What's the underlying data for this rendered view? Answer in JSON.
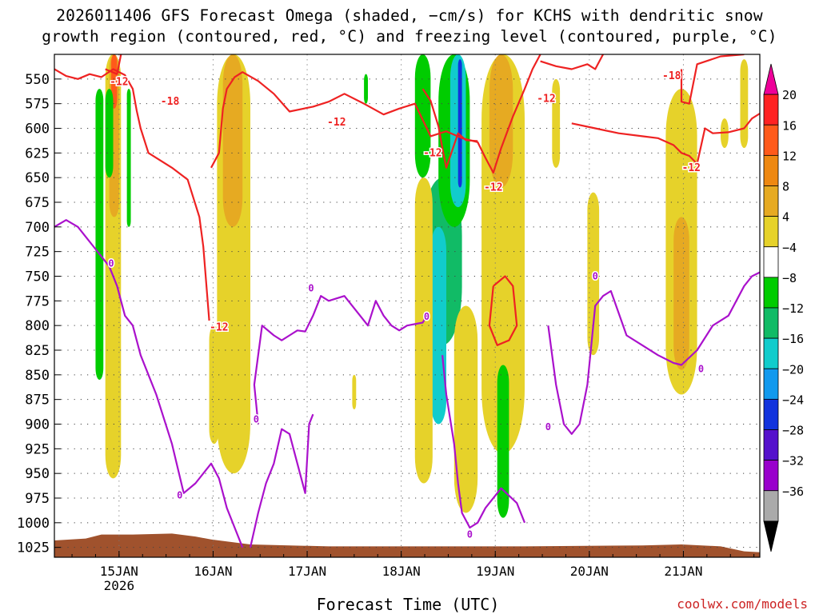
{
  "chart_data": {
    "type": "heatmap",
    "title_lines": [
      "2026011406 GFS Forecast Omega (shaded, −cm/s) for KCHS with dendritic snow",
      "growth region (contoured, red, °C) and freezing level (contoured, purple, °C)"
    ],
    "xlabel": "Forecast Time (UTC)",
    "ylabel": "",
    "credit": "coolwx.com/models",
    "x_range_hours": [
      0,
      180
    ],
    "y_range_hpa": [
      525,
      1035
    ],
    "x_ticks": [
      {
        "hour": 16.5,
        "label": "15JAN",
        "sub": "2026"
      },
      {
        "hour": 40.5,
        "label": "16JAN",
        "sub": ""
      },
      {
        "hour": 64.5,
        "label": "17JAN",
        "sub": ""
      },
      {
        "hour": 88.5,
        "label": "18JAN",
        "sub": ""
      },
      {
        "hour": 112.5,
        "label": "19JAN",
        "sub": ""
      },
      {
        "hour": 136.5,
        "label": "20JAN",
        "sub": ""
      },
      {
        "hour": 160.5,
        "label": "21JAN",
        "sub": ""
      }
    ],
    "y_ticks": [
      550,
      575,
      600,
      625,
      650,
      675,
      700,
      725,
      750,
      775,
      800,
      825,
      850,
      875,
      900,
      925,
      950,
      975,
      1000,
      1025
    ],
    "colorbar": {
      "labels": [
        "20",
        "16",
        "12",
        "8",
        "4",
        "−4",
        "−8",
        "−12",
        "−16",
        "−20",
        "−24",
        "−28",
        "−32",
        "−36"
      ],
      "colors": [
        "#ee0099",
        "#ff2222",
        "#ff5a1a",
        "#ee8811",
        "#e6aa22",
        "#e6d22a",
        "#ffffff",
        "#00cc00",
        "#11bb66",
        "#11cccc",
        "#1199ee",
        "#1133dd",
        "#5511cc",
        "#9900cc",
        "#aaaaaa",
        "#000000"
      ]
    },
    "shaded_regions": [
      {
        "color": "#e6d22a",
        "hour0": 13,
        "hour1": 17,
        "p_top": 525,
        "p_bot": 955
      },
      {
        "color": "#e6aa22",
        "hour0": 14,
        "hour1": 16.5,
        "p_top": 525,
        "p_bot": 690
      },
      {
        "color": "#ff5a1a",
        "hour0": 14.5,
        "hour1": 16,
        "p_top": 525,
        "p_bot": 580
      },
      {
        "color": "#00cc00",
        "hour0": 10.5,
        "hour1": 12.5,
        "p_top": 560,
        "p_bot": 855
      },
      {
        "color": "#00cc00",
        "hour0": 13,
        "hour1": 15,
        "p_top": 560,
        "p_bot": 650
      },
      {
        "color": "#00cc00",
        "hour0": 18.5,
        "hour1": 19.5,
        "p_top": 560,
        "p_bot": 700
      },
      {
        "color": "#e6d22a",
        "hour0": 41.5,
        "hour1": 50,
        "p_top": 525,
        "p_bot": 950
      },
      {
        "color": "#e6aa22",
        "hour0": 43,
        "hour1": 48,
        "p_top": 525,
        "p_bot": 700
      },
      {
        "color": "#e6d22a",
        "hour0": 39.5,
        "hour1": 42,
        "p_top": 800,
        "p_bot": 920
      },
      {
        "color": "#e6d22a",
        "hour0": 76,
        "hour1": 77,
        "p_top": 850,
        "p_bot": 885
      },
      {
        "color": "#00cc00",
        "hour0": 79,
        "hour1": 80,
        "p_top": 545,
        "p_bot": 575
      },
      {
        "color": "#00cc00",
        "hour0": 92,
        "hour1": 96,
        "p_top": 525,
        "p_bot": 650
      },
      {
        "color": "#11bb66",
        "hour0": 94,
        "hour1": 104,
        "p_top": 650,
        "p_bot": 820
      },
      {
        "color": "#11cccc",
        "hour0": 96,
        "hour1": 100,
        "p_top": 700,
        "p_bot": 900
      },
      {
        "color": "#e6d22a",
        "hour0": 92,
        "hour1": 96.5,
        "p_top": 650,
        "p_bot": 960
      },
      {
        "color": "#00cc00",
        "hour0": 98,
        "hour1": 106,
        "p_top": 525,
        "p_bot": 700
      },
      {
        "color": "#11cccc",
        "hour0": 101,
        "hour1": 105,
        "p_top": 525,
        "p_bot": 680
      },
      {
        "color": "#1133dd",
        "hour0": 103,
        "hour1": 104,
        "p_top": 530,
        "p_bot": 660
      },
      {
        "color": "#e6d22a",
        "hour0": 102,
        "hour1": 108,
        "p_top": 780,
        "p_bot": 990
      },
      {
        "color": "#e6d22a",
        "hour0": 109,
        "hour1": 120,
        "p_top": 525,
        "p_bot": 930
      },
      {
        "color": "#e6aa22",
        "hour0": 111,
        "hour1": 117,
        "p_top": 525,
        "p_bot": 660
      },
      {
        "color": "#e6d22a",
        "hour0": 127,
        "hour1": 129,
        "p_top": 550,
        "p_bot": 640
      },
      {
        "color": "#00cc00",
        "hour0": 113,
        "hour1": 116,
        "p_top": 840,
        "p_bot": 995
      },
      {
        "color": "#e6d22a",
        "hour0": 136,
        "hour1": 139,
        "p_top": 665,
        "p_bot": 830
      },
      {
        "color": "#e6d22a",
        "hour0": 156,
        "hour1": 164,
        "p_top": 560,
        "p_bot": 870
      },
      {
        "color": "#e6aa22",
        "hour0": 158,
        "hour1": 162,
        "p_top": 690,
        "p_bot": 845
      },
      {
        "color": "#e6d22a",
        "hour0": 175,
        "hour1": 177,
        "p_top": 530,
        "p_bot": 620
      },
      {
        "color": "#e6d22a",
        "hour0": 170,
        "hour1": 172,
        "p_top": 590,
        "p_bot": 620
      }
    ],
    "series": [
      {
        "name": "-12 C (DGZ bottom)",
        "color": "#ee2222",
        "points": [
          [
            0,
            540
          ],
          [
            3,
            547
          ],
          [
            6,
            550
          ],
          [
            9,
            545
          ],
          [
            12,
            548
          ],
          [
            15,
            540
          ],
          [
            18,
            546
          ],
          [
            20,
            560
          ],
          [
            21,
            582
          ],
          [
            22,
            600
          ],
          [
            24,
            625
          ],
          [
            30,
            640
          ],
          [
            34,
            652
          ],
          [
            37,
            690
          ],
          [
            38,
            720
          ],
          [
            39.5,
            795
          ]
        ]
      },
      {
        "name": "-12 C segment 2",
        "color": "#ee2222",
        "points": [
          [
            40,
            640
          ],
          [
            42,
            625
          ],
          [
            43,
            580
          ],
          [
            44,
            560
          ],
          [
            46,
            548
          ],
          [
            48,
            543
          ],
          [
            52,
            552
          ],
          [
            56,
            565
          ],
          [
            60,
            583
          ],
          [
            66,
            578
          ],
          [
            70,
            573
          ],
          [
            74,
            565
          ],
          [
            79,
            575
          ],
          [
            84,
            586
          ],
          [
            88,
            580
          ],
          [
            92,
            575
          ],
          [
            96,
            608
          ],
          [
            100,
            603
          ],
          [
            104,
            610
          ],
          [
            108,
            614
          ],
          [
            110,
            630
          ],
          [
            112,
            645
          ],
          [
            114,
            620
          ],
          [
            117,
            588
          ],
          [
            120,
            560
          ],
          [
            122,
            540
          ],
          [
            124,
            525
          ]
        ]
      },
      {
        "name": "-12 C segment 3",
        "color": "#ee2222",
        "points": [
          [
            94,
            560
          ],
          [
            96,
            572
          ],
          [
            98,
            598
          ],
          [
            99,
            620
          ],
          [
            100,
            640
          ],
          [
            103,
            605
          ],
          [
            105,
            612
          ],
          [
            108,
            613
          ]
        ]
      },
      {
        "name": "-12 C closed",
        "color": "#ee2222",
        "points": [
          [
            112,
            760
          ],
          [
            115,
            750
          ],
          [
            117,
            760
          ],
          [
            118,
            800
          ],
          [
            116,
            815
          ],
          [
            113,
            820
          ],
          [
            111,
            800
          ],
          [
            112,
            760
          ]
        ]
      },
      {
        "name": "-12 C upper right",
        "color": "#ee2222",
        "points": [
          [
            124,
            532
          ],
          [
            128,
            537
          ],
          [
            132,
            540
          ],
          [
            136,
            535
          ],
          [
            138,
            540
          ],
          [
            140,
            525
          ]
        ]
      },
      {
        "name": "-12 C right",
        "color": "#ee2222",
        "points": [
          [
            132,
            595
          ],
          [
            138,
            600
          ],
          [
            144,
            605
          ],
          [
            150,
            608
          ],
          [
            154,
            610
          ],
          [
            158,
            617
          ],
          [
            160,
            625
          ],
          [
            162,
            628
          ],
          [
            164,
            636
          ],
          [
            166,
            600
          ],
          [
            168,
            605
          ],
          [
            172,
            604
          ],
          [
            176,
            600
          ],
          [
            178,
            590
          ],
          [
            180,
            585
          ]
        ]
      },
      {
        "name": "-12 C far right",
        "color": "#ee2222",
        "points": [
          [
            160,
            540
          ],
          [
            160,
            550
          ],
          [
            160,
            573
          ],
          [
            162,
            575
          ],
          [
            164,
            535
          ],
          [
            170,
            527
          ],
          [
            176,
            525
          ]
        ]
      },
      {
        "name": "-18 C",
        "color": "#ee2222",
        "points": [
          [
            13,
            540
          ],
          [
            16,
            545
          ],
          [
            17,
            525
          ]
        ]
      },
      {
        "name": "0 C freezing level",
        "color": "#aa11cc",
        "points": [
          [
            0,
            700
          ],
          [
            3,
            693
          ],
          [
            6,
            700
          ],
          [
            8,
            710
          ],
          [
            10,
            720
          ],
          [
            12,
            730
          ],
          [
            14,
            740
          ],
          [
            16,
            760
          ],
          [
            18,
            790
          ],
          [
            20,
            800
          ],
          [
            22,
            830
          ],
          [
            26,
            870
          ],
          [
            30,
            920
          ],
          [
            33,
            970
          ],
          [
            36,
            960
          ],
          [
            40,
            940
          ],
          [
            42,
            955
          ],
          [
            44,
            985
          ],
          [
            46,
            1005
          ],
          [
            48,
            1025
          ]
        ]
      },
      {
        "name": "0 C freezing level 2",
        "color": "#aa11cc",
        "points": [
          [
            50,
            1025
          ],
          [
            52,
            990
          ],
          [
            54,
            960
          ],
          [
            56,
            940
          ],
          [
            58,
            905
          ],
          [
            60,
            910
          ],
          [
            62,
            940
          ],
          [
            64,
            970
          ],
          [
            65,
            900
          ],
          [
            66,
            890
          ]
        ]
      },
      {
        "name": "0 C freezing level 3",
        "color": "#aa11cc",
        "points": [
          [
            52,
            900
          ],
          [
            51,
            860
          ],
          [
            53,
            800
          ],
          [
            56,
            810
          ],
          [
            58,
            815
          ],
          [
            60,
            810
          ],
          [
            62,
            805
          ],
          [
            64,
            806
          ],
          [
            66,
            790
          ],
          [
            68,
            770
          ],
          [
            70,
            775
          ],
          [
            74,
            770
          ],
          [
            78,
            790
          ],
          [
            80,
            800
          ],
          [
            82,
            775
          ],
          [
            84,
            790
          ],
          [
            86,
            800
          ],
          [
            88,
            805
          ],
          [
            90,
            800
          ],
          [
            94,
            797
          ],
          [
            95,
            790
          ]
        ]
      },
      {
        "name": "0 C freezing level 4",
        "color": "#aa11cc",
        "points": [
          [
            99,
            830
          ],
          [
            100,
            870
          ],
          [
            102,
            920
          ],
          [
            103,
            960
          ],
          [
            104,
            990
          ],
          [
            106,
            1005
          ],
          [
            108,
            1000
          ],
          [
            110,
            985
          ],
          [
            114,
            965
          ],
          [
            118,
            980
          ],
          [
            120,
            1000
          ]
        ]
      },
      {
        "name": "0 C freezing level 5",
        "color": "#aa11cc",
        "points": [
          [
            126,
            800
          ],
          [
            128,
            860
          ],
          [
            130,
            900
          ],
          [
            132,
            910
          ],
          [
            134,
            900
          ],
          [
            136,
            860
          ],
          [
            138,
            780
          ],
          [
            140,
            770
          ],
          [
            142,
            765
          ],
          [
            146,
            810
          ],
          [
            150,
            820
          ],
          [
            154,
            830
          ],
          [
            158,
            838
          ],
          [
            160,
            840
          ],
          [
            164,
            825
          ],
          [
            168,
            800
          ],
          [
            172,
            790
          ],
          [
            176,
            760
          ],
          [
            178,
            750
          ],
          [
            180,
            746
          ]
        ]
      }
    ],
    "contour_labels": [
      {
        "text": "-12",
        "hour": 16.5,
        "p": 553
      },
      {
        "text": "-18",
        "hour": 29.5,
        "p": 573
      },
      {
        "text": "-12",
        "hour": 42,
        "p": 802
      },
      {
        "text": "-12",
        "hour": 72,
        "p": 594
      },
      {
        "text": "-12",
        "hour": 96.5,
        "p": 625
      },
      {
        "text": "-12",
        "hour": 112,
        "p": 660
      },
      {
        "text": "-12",
        "hour": 125.5,
        "p": 570
      },
      {
        "text": "-18",
        "hour": 157.5,
        "p": 547
      },
      {
        "text": "-12",
        "hour": 162.5,
        "p": 640
      },
      {
        "text": "0",
        "hour": 14.5,
        "p": 737
      },
      {
        "text": "0",
        "hour": 32,
        "p": 972
      },
      {
        "text": "0",
        "hour": 51.5,
        "p": 895
      },
      {
        "text": "0",
        "hour": 65.5,
        "p": 762
      },
      {
        "text": "0",
        "hour": 95,
        "p": 791
      },
      {
        "text": "0",
        "hour": 106,
        "p": 1012
      },
      {
        "text": "0",
        "hour": 126,
        "p": 903
      },
      {
        "text": "0",
        "hour": 138,
        "p": 750
      },
      {
        "text": "0",
        "hour": 165,
        "p": 844
      }
    ],
    "terrain_color": "#a0522d"
  }
}
